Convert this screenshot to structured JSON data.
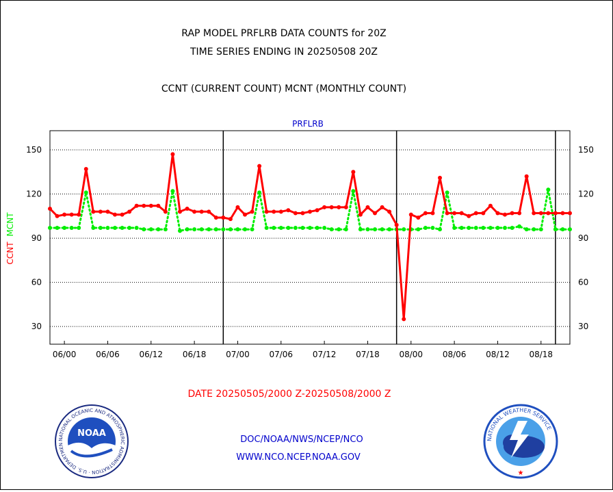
{
  "header": {
    "title_line1": "RAP MODEL PRFLRB DATA COUNTS for 20Z",
    "title_line2": "TIME SERIES ENDING IN 20250508 20Z",
    "subtitle": "CCNT (CURRENT COUNT) MCNT (MONTHLY COUNT)"
  },
  "footer": {
    "date_range": "DATE 20250505/2000 Z-20250508/2000 Z",
    "link1": "DOC/NOAA/NWS/NCEP/NCO",
    "link2": "WWW.NCO.NCEP.NOAA.GOV"
  },
  "logos": {
    "noaa": {
      "center_text": "NOAA",
      "ring_text": "NATIONAL OCEANIC AND ATMOSPHERIC ADMINISTRATION · U.S. DEPARTMENT OF COMMERCE",
      "icon": "noaa-logo"
    },
    "nws": {
      "ring_text": "NATIONAL WEATHER SERVICE",
      "icon": "nws-logo"
    }
  },
  "colors": {
    "ccnt": "#ff0000",
    "mcnt": "#00ee00",
    "plot_title": "#0000cc",
    "date_text": "#ff0000",
    "links": "#0000cc",
    "grid": "#000000"
  },
  "chart_data": {
    "type": "line",
    "title": "PRFLRB",
    "ylabel_left_series": [
      "CCNT",
      "MCNT"
    ],
    "ylim": [
      18,
      163
    ],
    "yticks": [
      30,
      60,
      90,
      120,
      150
    ],
    "xtick_labels": [
      "06/00",
      "06/06",
      "06/12",
      "06/18",
      "07/00",
      "07/06",
      "07/12",
      "07/18",
      "08/00",
      "08/06",
      "08/12",
      "08/18"
    ],
    "xtick_hours": [
      6,
      12,
      18,
      24,
      30,
      36,
      42,
      48,
      54,
      60,
      66,
      72
    ],
    "xlim_hours": [
      4,
      76
    ],
    "day_boundaries_hours": [
      28,
      52,
      74
    ],
    "grid": true,
    "legend": "left axis label",
    "series": [
      {
        "name": "CCNT",
        "color": "#ff0000",
        "x_hours": [
          4,
          5,
          6,
          7,
          8,
          9,
          10,
          11,
          12,
          13,
          14,
          15,
          16,
          17,
          18,
          19,
          20,
          21,
          22,
          23,
          24,
          25,
          26,
          27,
          28,
          29,
          30,
          31,
          32,
          33,
          34,
          35,
          36,
          37,
          38,
          39,
          40,
          41,
          42,
          43,
          44,
          45,
          46,
          47,
          48,
          49,
          50,
          51,
          52,
          53,
          54,
          55,
          56,
          57,
          58,
          59,
          60,
          61,
          62,
          63,
          64,
          65,
          66,
          67,
          68,
          69,
          70,
          71,
          72,
          73,
          74,
          75,
          76
        ],
        "values": [
          110,
          105,
          106,
          106,
          106,
          137,
          108,
          108,
          108,
          106,
          106,
          108,
          112,
          112,
          112,
          112,
          108,
          147,
          108,
          110,
          108,
          108,
          108,
          104,
          104,
          103,
          111,
          106,
          108,
          139,
          108,
          108,
          108,
          109,
          107,
          107,
          108,
          109,
          111,
          111,
          111,
          111,
          135,
          106,
          111,
          107,
          111,
          108,
          99,
          35,
          106,
          104,
          107,
          107,
          131,
          107,
          107,
          107,
          105,
          107,
          107,
          112,
          107,
          106,
          107,
          107,
          132,
          107,
          107,
          107,
          107,
          107,
          107
        ]
      },
      {
        "name": "MCNT",
        "color": "#00ee00",
        "x_hours": [
          4,
          5,
          6,
          7,
          8,
          9,
          10,
          11,
          12,
          13,
          14,
          15,
          16,
          17,
          18,
          19,
          20,
          21,
          22,
          23,
          24,
          25,
          26,
          27,
          28,
          29,
          30,
          31,
          32,
          33,
          34,
          35,
          36,
          37,
          38,
          39,
          40,
          41,
          42,
          43,
          44,
          45,
          46,
          47,
          48,
          49,
          50,
          51,
          52,
          53,
          54,
          55,
          56,
          57,
          58,
          59,
          60,
          61,
          62,
          63,
          64,
          65,
          66,
          67,
          68,
          69,
          70,
          71,
          72,
          73,
          74,
          75,
          76
        ],
        "values": [
          97,
          97,
          97,
          97,
          97,
          121,
          97,
          97,
          97,
          97,
          97,
          97,
          97,
          96,
          96,
          96,
          96,
          122,
          95,
          96,
          96,
          96,
          96,
          96,
          96,
          96,
          96,
          96,
          96,
          121,
          97,
          97,
          97,
          97,
          97,
          97,
          97,
          97,
          97,
          96,
          96,
          96,
          122,
          96,
          96,
          96,
          96,
          96,
          96,
          96,
          96,
          96,
          97,
          97,
          96,
          121,
          97,
          97,
          97,
          97,
          97,
          97,
          97,
          97,
          97,
          98,
          96,
          96,
          96,
          123,
          96,
          96,
          96
        ]
      }
    ]
  }
}
